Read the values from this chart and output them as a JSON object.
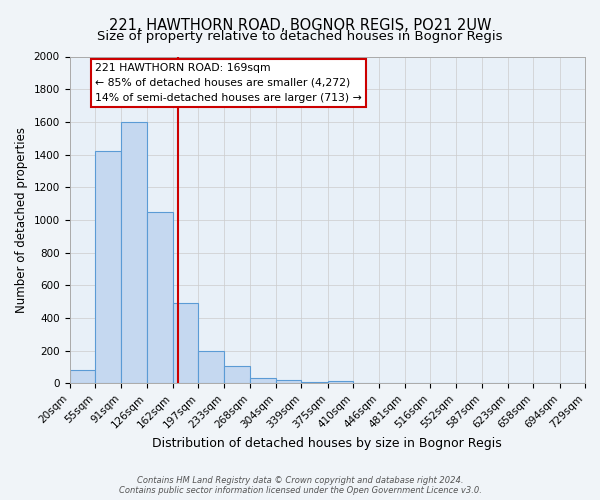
{
  "title": "221, HAWTHORN ROAD, BOGNOR REGIS, PO21 2UW",
  "subtitle": "Size of property relative to detached houses in Bognor Regis",
  "xlabel": "Distribution of detached houses by size in Bognor Regis",
  "ylabel": "Number of detached properties",
  "bin_edges": [
    20,
    55,
    91,
    126,
    162,
    197,
    233,
    268,
    304,
    339,
    375,
    410,
    446,
    481,
    516,
    552,
    587,
    623,
    658,
    694,
    729
  ],
  "bin_counts": [
    80,
    1420,
    1600,
    1050,
    490,
    200,
    105,
    35,
    20,
    10,
    15,
    0,
    0,
    0,
    0,
    0,
    0,
    0,
    0,
    0
  ],
  "bar_color": "#c5d8f0",
  "bar_edge_color": "#5b9bd5",
  "bar_linewidth": 0.8,
  "red_line_x": 169,
  "annotation_title": "221 HAWTHORN ROAD: 169sqm",
  "annotation_line1": "← 85% of detached houses are smaller (4,272)",
  "annotation_line2": "14% of semi-detached houses are larger (713) →",
  "annotation_box_color": "#ffffff",
  "annotation_box_edge_color": "#cc0000",
  "ylim": [
    0,
    2000
  ],
  "yticks": [
    0,
    200,
    400,
    600,
    800,
    1000,
    1200,
    1400,
    1600,
    1800,
    2000
  ],
  "grid_color": "#cccccc",
  "plot_bg_color": "#e8f0f8",
  "fig_bg_color": "#f0f4f8",
  "footer_line1": "Contains HM Land Registry data © Crown copyright and database right 2024.",
  "footer_line2": "Contains public sector information licensed under the Open Government Licence v3.0.",
  "title_fontsize": 10.5,
  "subtitle_fontsize": 9.5,
  "xlabel_fontsize": 9,
  "ylabel_fontsize": 8.5,
  "tick_fontsize": 7.5,
  "annotation_fontsize": 7.8,
  "footer_fontsize": 6.0
}
